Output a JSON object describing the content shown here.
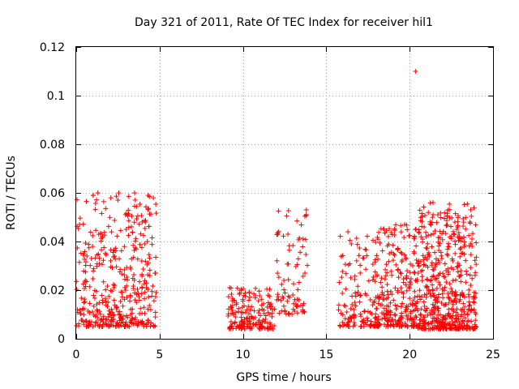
{
  "chart_data": {
    "type": "scatter",
    "title": "Day 321 of 2011, Rate Of TEC Index for receiver hil1",
    "xlabel": "GPS time / hours",
    "ylabel": "ROTI / TECUs",
    "xlim": [
      0,
      25
    ],
    "ylim": [
      0,
      0.12
    ],
    "xticks": [
      "0",
      "5",
      "10",
      "15",
      "20",
      "25"
    ],
    "yticks": [
      "0",
      "0.02",
      "0.04",
      "0.06",
      "0.08",
      "0.1",
      "0.12"
    ],
    "grid": true,
    "marker": "plus",
    "color": "#ff0000",
    "clusters": [
      {
        "x_range": [
          0.0,
          4.8
        ],
        "y_range": [
          0.005,
          0.06
        ],
        "count": 420
      },
      {
        "x_range": [
          9.1,
          11.9
        ],
        "y_range": [
          0.004,
          0.021
        ],
        "count": 170
      },
      {
        "x_range": [
          12.0,
          13.9
        ],
        "y_range": [
          0.01,
          0.053
        ],
        "count": 80
      },
      {
        "x_range": [
          15.7,
          17.8
        ],
        "y_range": [
          0.005,
          0.044
        ],
        "count": 110
      },
      {
        "x_range": [
          17.8,
          20.5
        ],
        "y_range": [
          0.005,
          0.047
        ],
        "count": 280
      },
      {
        "x_range": [
          20.5,
          24.0
        ],
        "y_range": [
          0.004,
          0.056
        ],
        "count": 520
      }
    ],
    "points": [
      [
        1.3,
        0.06
      ],
      [
        3.5,
        0.06
      ],
      [
        2.5,
        0.057
      ],
      [
        21.4,
        0.056
      ],
      [
        13.8,
        0.053
      ],
      [
        13.8,
        0.051
      ],
      [
        0.2,
        0.047
      ],
      [
        19.7,
        0.047
      ],
      [
        3.0,
        0.045
      ],
      [
        4.1,
        0.039
      ],
      [
        16.3,
        0.044
      ],
      [
        12.7,
        0.043
      ],
      [
        16.5,
        0.039
      ],
      [
        9.2,
        0.021
      ],
      [
        10.1,
        0.004
      ],
      [
        20.35,
        0.11
      ]
    ]
  }
}
